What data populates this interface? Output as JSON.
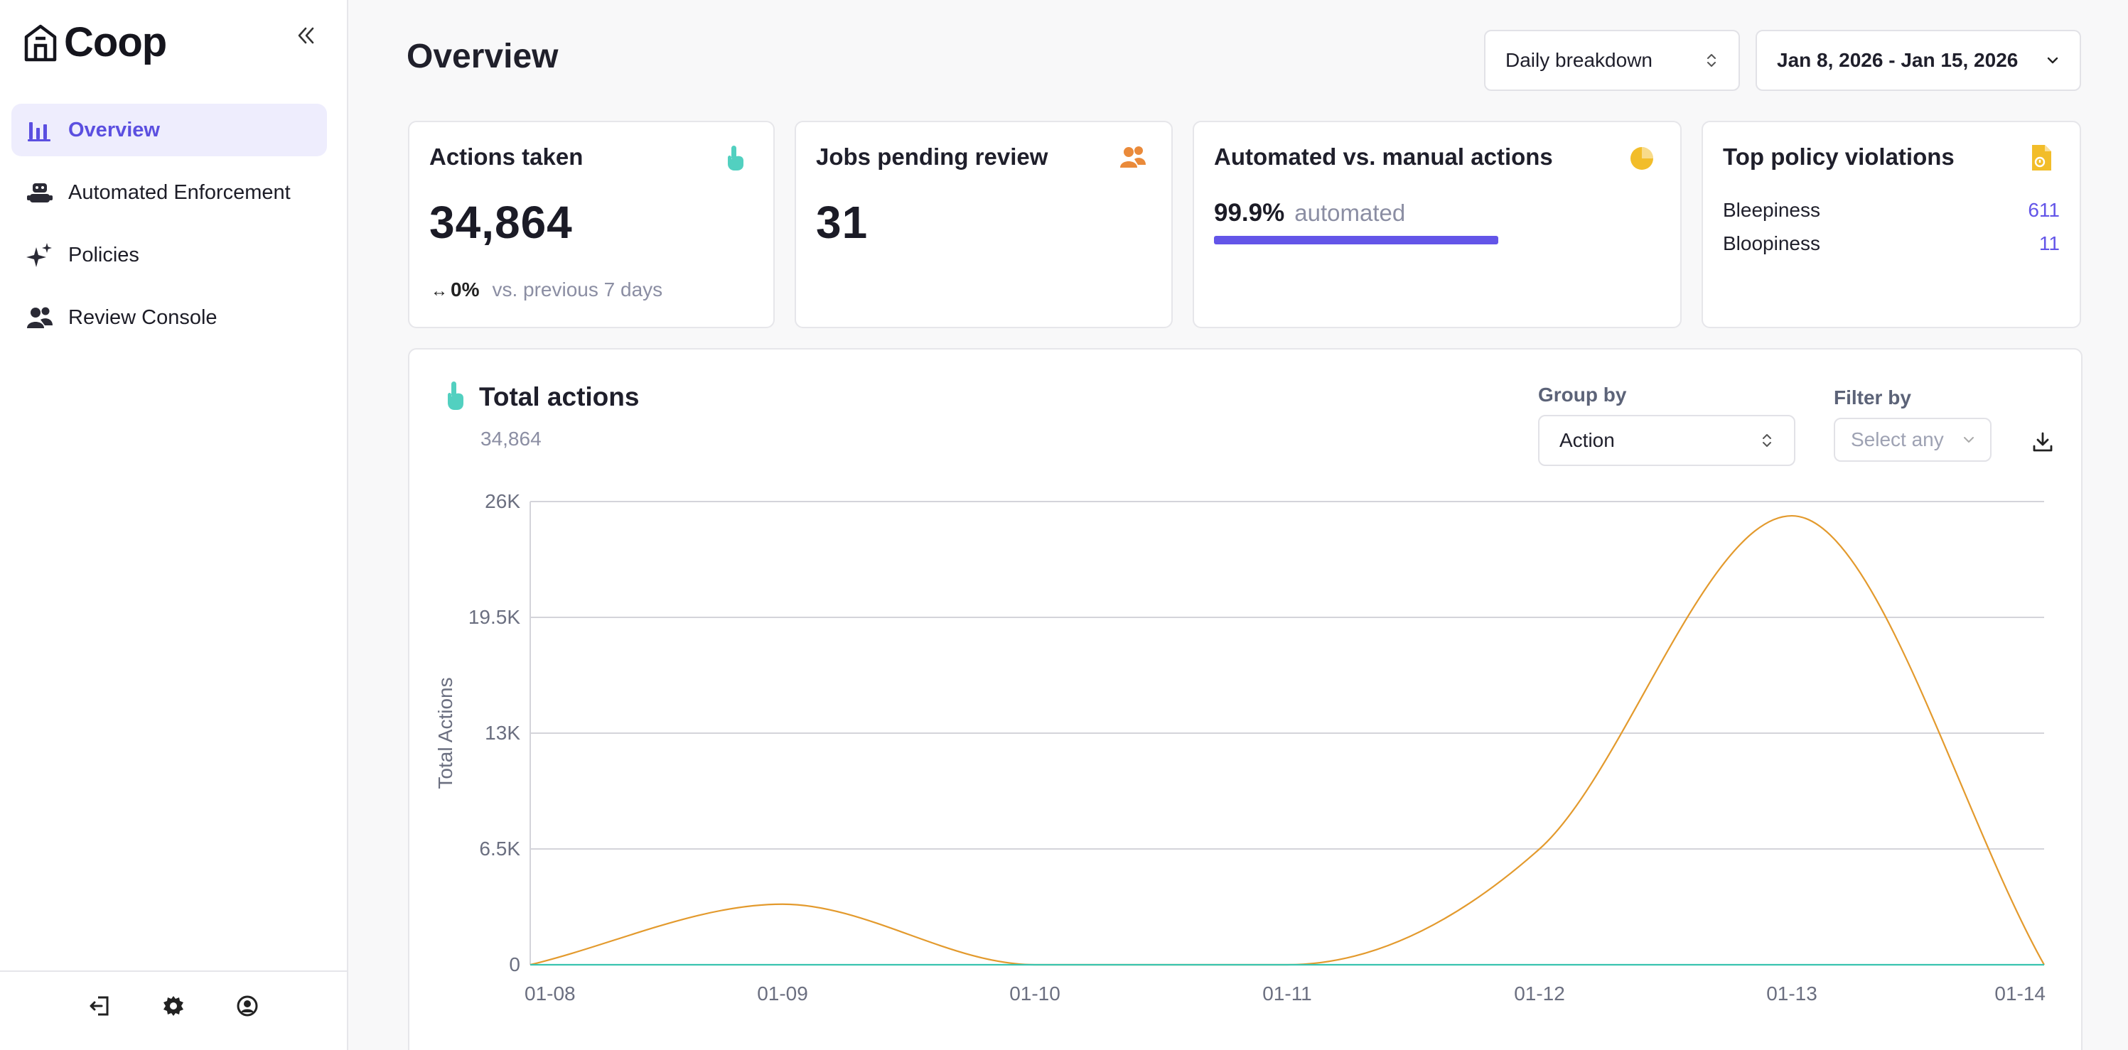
{
  "app": {
    "name": "Coop"
  },
  "sidebar": {
    "items": [
      {
        "label": "Overview",
        "active": true
      },
      {
        "label": "Automated Enforcement"
      },
      {
        "label": "Policies"
      },
      {
        "label": "Review Console"
      }
    ]
  },
  "header": {
    "title": "Overview",
    "breakdown_select": "Daily breakdown",
    "date_range": "Jan 8, 2026 - Jan 15, 2026"
  },
  "cards": {
    "actions_taken": {
      "title": "Actions taken",
      "value": "34,864",
      "delta": "0%",
      "delta_note": "vs. previous 7 days"
    },
    "jobs_pending": {
      "title": "Jobs pending review",
      "value": "31"
    },
    "automated": {
      "title": "Automated vs. manual actions",
      "percent": "99.9%",
      "label": "automated",
      "fraction": 0.999
    },
    "violations": {
      "title": "Top policy violations",
      "rows": [
        {
          "name": "Bleepiness",
          "count": "611"
        },
        {
          "name": "Bloopiness",
          "count": "11"
        }
      ]
    }
  },
  "total_actions": {
    "title": "Total actions",
    "total": "34,864",
    "group_by_label": "Group by",
    "group_by_value": "Action",
    "filter_by_label": "Filter by",
    "filter_by_placeholder": "Select any"
  },
  "colors": {
    "accent": "#6355e8",
    "line_orange": "#e39a2d",
    "line_teal": "#39c4b0"
  },
  "chart_data": {
    "type": "line",
    "ylabel": "Total Actions",
    "xlabel": "",
    "categories": [
      "01-08",
      "01-09",
      "01-10",
      "01-11",
      "01-12",
      "01-13",
      "01-14"
    ],
    "yticks": [
      "0",
      "6.5K",
      "13K",
      "19.5K",
      "26K"
    ],
    "ylim": [
      0,
      26000
    ],
    "grid": true,
    "series": [
      {
        "values": [
          0,
          3400,
          0,
          0,
          6500,
          25200,
          0
        ]
      },
      {
        "values": [
          0,
          0,
          0,
          0,
          0,
          0,
          0
        ]
      }
    ]
  }
}
